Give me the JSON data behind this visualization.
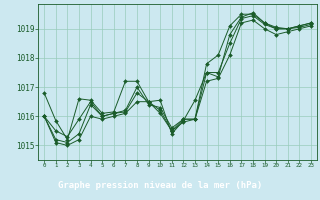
{
  "xlabel": "Graphe pression niveau de la mer (hPa)",
  "background_color": "#cce8f0",
  "plot_bg_color": "#cce8f0",
  "grid_color": "#99ccbb",
  "line_color": "#1a5c2a",
  "xlabel_bg": "#2d6e3a",
  "xlabel_fg": "#ffffff",
  "x_ticks": [
    0,
    1,
    2,
    3,
    4,
    5,
    6,
    7,
    8,
    9,
    10,
    11,
    12,
    13,
    14,
    15,
    16,
    17,
    18,
    19,
    20,
    21,
    22,
    23
  ],
  "ylim": [
    1014.5,
    1019.85
  ],
  "yticks": [
    1015,
    1016,
    1017,
    1018,
    1019
  ],
  "series": [
    [
      1016.8,
      1015.85,
      1015.2,
      1016.6,
      1016.55,
      1016.1,
      1016.15,
      1017.2,
      1017.2,
      1016.5,
      1016.55,
      1015.4,
      1015.85,
      1016.55,
      1017.5,
      1017.35,
      1018.8,
      1019.4,
      1019.55,
      1019.2,
      1019.05,
      1019.0,
      1019.1,
      1019.2
    ],
    [
      1016.0,
      1015.5,
      1015.3,
      1015.9,
      1016.5,
      1016.0,
      1016.1,
      1016.2,
      1017.0,
      1016.4,
      1016.3,
      1015.6,
      1015.9,
      1015.9,
      1017.8,
      1018.1,
      1019.1,
      1019.5,
      1019.5,
      1019.2,
      1019.0,
      1019.0,
      1019.1,
      1019.2
    ],
    [
      1016.0,
      1015.2,
      1015.1,
      1015.4,
      1016.4,
      1016.0,
      1016.1,
      1016.15,
      1016.8,
      1016.5,
      1016.2,
      1015.5,
      1015.9,
      1015.9,
      1017.5,
      1017.5,
      1018.5,
      1019.35,
      1019.45,
      1019.15,
      1019.0,
      1019.0,
      1019.05,
      1019.15
    ],
    [
      1016.0,
      1015.1,
      1015.0,
      1015.2,
      1016.0,
      1015.9,
      1016.0,
      1016.1,
      1016.5,
      1016.5,
      1016.1,
      1015.5,
      1015.8,
      1015.9,
      1017.2,
      1017.3,
      1018.1,
      1019.2,
      1019.3,
      1019.0,
      1018.8,
      1018.9,
      1019.0,
      1019.1
    ]
  ]
}
